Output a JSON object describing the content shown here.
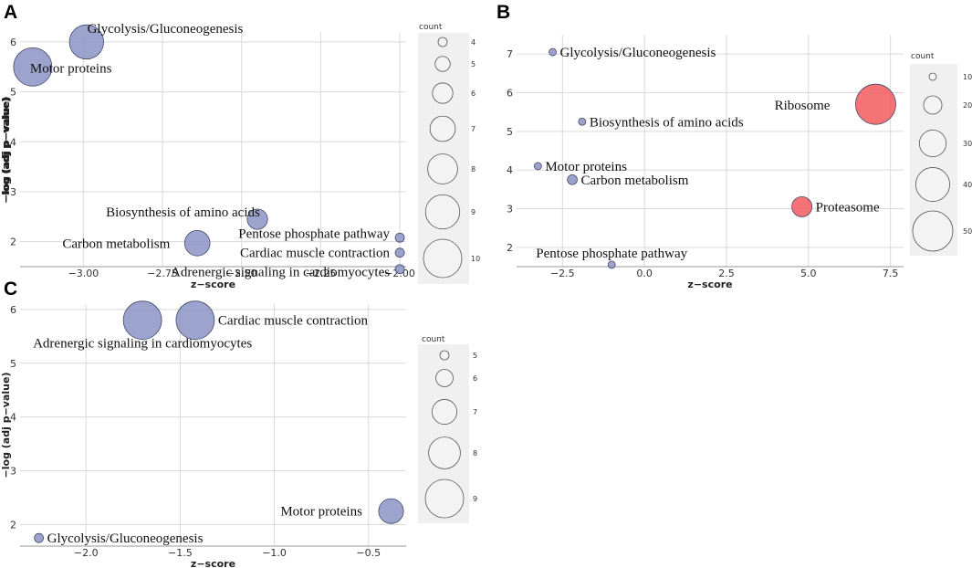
{
  "chart_data": [
    {
      "panel": "A",
      "type": "scatter",
      "title": "",
      "xlabel": "z−score",
      "ylabel": "−log (adj p−value)",
      "xlim": [
        -3.2,
        -1.98
      ],
      "ylim": [
        1.5,
        6.2
      ],
      "xticks": [
        -3.0,
        -2.75,
        -2.5,
        -2.25,
        -2.0
      ],
      "xtick_labels": [
        "−3.00",
        "−2.75",
        "−2.50",
        "−2.25",
        "−2.00"
      ],
      "yticks": [
        2,
        3,
        4,
        5,
        6
      ],
      "ytick_labels": [
        "2",
        "3",
        "4",
        "5",
        "6"
      ],
      "points": [
        {
          "label": "Glycolysis/Gluconeogenesis",
          "x": -2.99,
          "y": 6.0,
          "count": 9,
          "color": "#8b93c4"
        },
        {
          "label": "Motor proteins",
          "x": -3.16,
          "y": 5.5,
          "count": 10,
          "color": "#8b93c4"
        },
        {
          "label": "Biosynthesis of amino acids",
          "x": -2.45,
          "y": 2.45,
          "count": 6,
          "color": "#8b93c4"
        },
        {
          "label": "Carbon metabolism",
          "x": -2.64,
          "y": 1.97,
          "count": 7,
          "color": "#8b93c4"
        },
        {
          "label": "Pentose phosphate pathway",
          "x": -2.0,
          "y": 2.08,
          "count": 4,
          "color": "#8b93c4"
        },
        {
          "label": "Cardiac muscle contraction",
          "x": -2.0,
          "y": 1.78,
          "count": 4,
          "color": "#8b93c4"
        },
        {
          "label": "Adrenergic signaling in cardiomyocytes",
          "x": -2.0,
          "y": 1.45,
          "count": 4,
          "color": "#8b93c4"
        }
      ],
      "legend": {
        "title": "count",
        "values": [
          4,
          5,
          6,
          7,
          8,
          9,
          10
        ],
        "labels": [
          "4",
          "5",
          "6",
          "7",
          "8",
          "9",
          "10"
        ],
        "position": "right"
      }
    },
    {
      "panel": "B",
      "type": "scatter",
      "title": "",
      "xlabel": "z−score",
      "ylabel": "−log (adj p−value)",
      "xlim": [
        -3.9,
        7.9
      ],
      "ylim": [
        1.5,
        7.5
      ],
      "xticks": [
        -2.5,
        0.0,
        2.5,
        5.0,
        7.5
      ],
      "xtick_labels": [
        "−2.5",
        "0.0",
        "2.5",
        "5.0",
        "7.5"
      ],
      "yticks": [
        2,
        3,
        4,
        5,
        6,
        7
      ],
      "ytick_labels": [
        "2",
        "3",
        "4",
        "5",
        "6",
        "7"
      ],
      "points": [
        {
          "label": "Glycolysis/Gluconeogenesis",
          "x": -2.8,
          "y": 7.05,
          "count": 10,
          "color": "#8b93c4"
        },
        {
          "label": "Ribosome",
          "x": 7.05,
          "y": 5.7,
          "count": 50,
          "color": "#f25a5f"
        },
        {
          "label": "Biosynthesis of amino acids",
          "x": -1.9,
          "y": 5.25,
          "count": 10,
          "color": "#8b93c4"
        },
        {
          "label": "Motor proteins",
          "x": -3.25,
          "y": 4.1,
          "count": 10,
          "color": "#8b93c4"
        },
        {
          "label": "Carbon metabolism",
          "x": -2.2,
          "y": 3.75,
          "count": 12,
          "color": "#8b93c4"
        },
        {
          "label": "Proteasome",
          "x": 4.8,
          "y": 3.05,
          "count": 22,
          "color": "#f25a5f"
        },
        {
          "label": "Pentose phosphate pathway",
          "x": -1.0,
          "y": 1.55,
          "count": 3,
          "color": "#8b93c4"
        }
      ],
      "legend": {
        "title": "count",
        "values": [
          10,
          20,
          30,
          40,
          50
        ],
        "labels": [
          "10",
          "20",
          "30",
          "40",
          "50"
        ],
        "position": "right"
      }
    },
    {
      "panel": "C",
      "type": "scatter",
      "title": "",
      "xlabel": "z−score",
      "ylabel": "−log (adj p−value)",
      "xlim": [
        -2.35,
        -0.3
      ],
      "ylim": [
        1.6,
        6.1
      ],
      "xticks": [
        -2.0,
        -1.5,
        -1.0,
        -0.5
      ],
      "xtick_labels": [
        "−2.0",
        "−1.5",
        "−1.0",
        "−0.5"
      ],
      "yticks": [
        2,
        3,
        4,
        5,
        6
      ],
      "ytick_labels": [
        "2",
        "3",
        "4",
        "5",
        "6"
      ],
      "points": [
        {
          "label": "Adrenergic signaling in cardiomyocytes",
          "x": -1.7,
          "y": 5.8,
          "count": 9,
          "color": "#8b93c4"
        },
        {
          "label": "Cardiac muscle contraction",
          "x": -1.42,
          "y": 5.8,
          "count": 9,
          "color": "#8b93c4"
        },
        {
          "label": "Motor proteins",
          "x": -0.38,
          "y": 2.25,
          "count": 7,
          "color": "#8b93c4"
        },
        {
          "label": "Glycolysis/Gluconeogenesis",
          "x": -2.25,
          "y": 1.75,
          "count": 4,
          "color": "#8b93c4"
        }
      ],
      "legend": {
        "title": "count",
        "values": [
          5,
          6,
          7,
          8,
          9
        ],
        "labels": [
          "5",
          "6",
          "7",
          "8",
          "9"
        ],
        "position": "right"
      }
    }
  ]
}
